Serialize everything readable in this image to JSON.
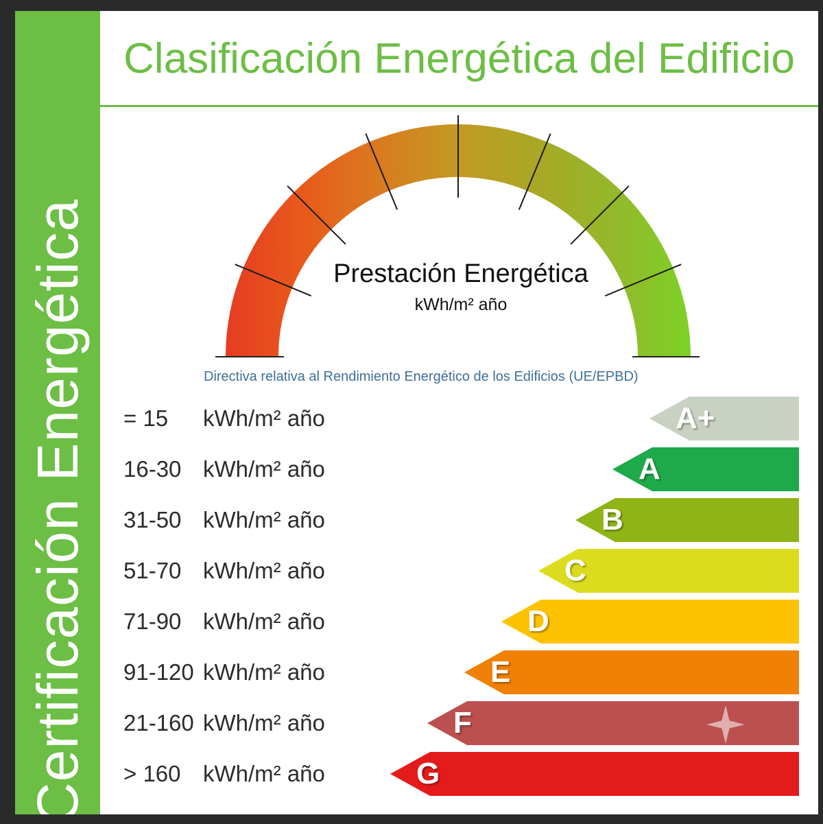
{
  "side_title": "Certificación Energética",
  "title": "Clasificación Energética del Edificio",
  "gauge": {
    "title": "Prestación Energética",
    "unit": "kWh/m² año",
    "colors": [
      "#e63c22",
      "#e85a1a",
      "#d97b20",
      "#c29a22",
      "#a9a726",
      "#94b82b",
      "#7dd126"
    ]
  },
  "directive": "Directiva relativa al Rendimiento Energético de los Edificios (UE/EPBD)",
  "unit_label": "kWh/m² año",
  "ratings": [
    {
      "range": "= 15",
      "label": "A+",
      "color": "#c9d1c3"
    },
    {
      "range": "16-30",
      "label": "A",
      "color": "#1ea94a"
    },
    {
      "range": "31-50",
      "label": "B",
      "color": "#8fb416"
    },
    {
      "range": "51-70",
      "label": "C",
      "color": "#dcdc1e"
    },
    {
      "range": "71-90",
      "label": "D",
      "color": "#fcc200"
    },
    {
      "range": "91-120",
      "label": "E",
      "color": "#f08105"
    },
    {
      "range": "21-160",
      "label": "F",
      "color": "#bc4f4f"
    },
    {
      "range": "> 160",
      "label": "G",
      "color": "#e31b1b"
    }
  ]
}
